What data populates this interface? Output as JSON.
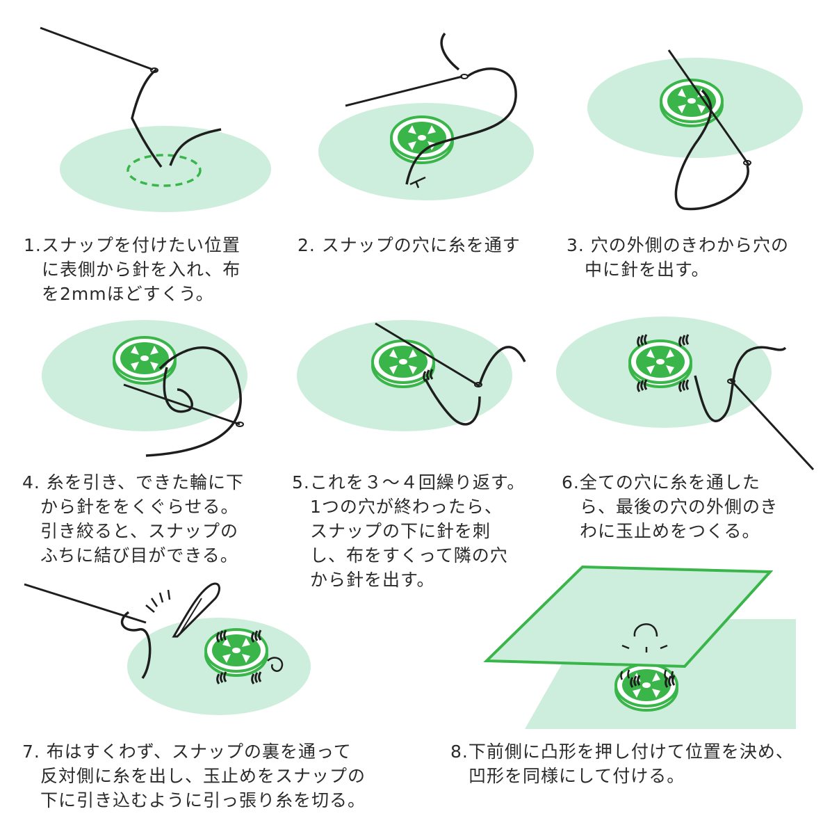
{
  "colors": {
    "fabric": "#cdeedd",
    "snap": "#39b54a",
    "thread": "#1e1e1e"
  },
  "steps": [
    {
      "lines": [
        "1.スナップを付けたい位置",
        "に表側から針を入れ、布",
        "を2mmほどすくう。"
      ]
    },
    {
      "lines": [
        "2. スナップの穴に糸を通す"
      ]
    },
    {
      "lines": [
        "3.  穴の外側のきわから穴の",
        "中に針を出す。"
      ]
    },
    {
      "lines": [
        "4. 糸を引き、できた輪に下",
        "から針ををくぐらせる。",
        "引き絞ると、スナップの",
        "ふちに結び目ができる。"
      ]
    },
    {
      "lines": [
        "5.これを３～４回繰り返す。",
        "1つの穴が終わったら、",
        "スナップの下に針を刺",
        "し、布をすくって隣の穴",
        "から針を出す。"
      ]
    },
    {
      "lines": [
        "6.全ての穴に糸を通した",
        "ら、最後の穴の外側のき",
        "わに玉止めをつくる。"
      ]
    },
    {
      "lines": [
        "7.    布はすくわず、スナップの裏を通って",
        "反対側に糸を出し、玉止めをスナップの",
        "下に引き込むように引っ張り糸を切る。"
      ]
    },
    {
      "lines": [
        "8.下前側に凸形を押し付けて位置を決め、",
        "凹形を同様にして付ける。"
      ]
    }
  ]
}
